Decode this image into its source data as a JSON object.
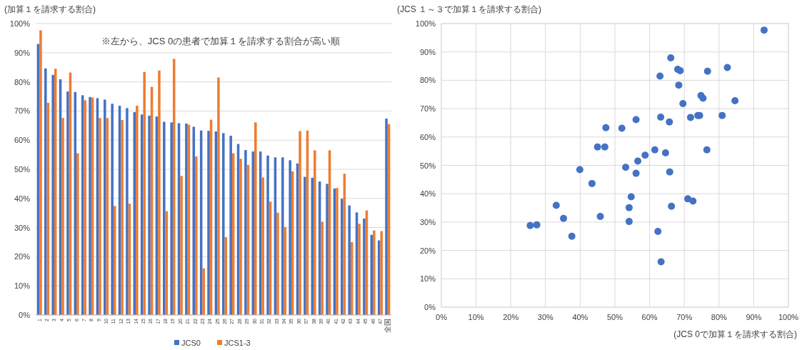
{
  "chart_data": [
    {
      "type": "bar",
      "ylabel": "(加算１を請求する割合)",
      "annotations": [
        "※左から、JCS 0の患者で加算１を請求する割合が高い順"
      ],
      "categories": [
        "1",
        "2",
        "3",
        "4",
        "5",
        "6",
        "7",
        "8",
        "9",
        "10",
        "11",
        "12",
        "13",
        "14",
        "15",
        "16",
        "17",
        "18",
        "19",
        "20",
        "21",
        "22",
        "23",
        "24",
        "25",
        "26",
        "27",
        "28",
        "29",
        "30",
        "31",
        "32",
        "33",
        "34",
        "35",
        "36",
        "37",
        "38",
        "39",
        "40",
        "41",
        "42",
        "43",
        "44",
        "45",
        "46",
        "47",
        "全国"
      ],
      "series": [
        {
          "name": "JCS0",
          "color": "#4472c4",
          "values": [
            93.0,
            84.6,
            82.4,
            80.9,
            76.7,
            76.5,
            75.4,
            74.8,
            74.4,
            73.9,
            72.5,
            71.8,
            71.0,
            69.6,
            68.8,
            68.4,
            68.1,
            66.3,
            66.1,
            65.8,
            65.7,
            64.6,
            63.3,
            63.2,
            63.0,
            62.4,
            61.5,
            58.7,
            56.6,
            56.1,
            56.1,
            54.7,
            54.1,
            54.1,
            53.1,
            52.0,
            47.4,
            47.1,
            45.8,
            45.0,
            43.4,
            39.9,
            37.6,
            35.2,
            33.1,
            27.5,
            25.6,
            67.4
          ]
        },
        {
          "name": "JCS1-3",
          "color": "#ed7d31",
          "values": [
            97.7,
            72.8,
            84.5,
            67.6,
            83.2,
            55.5,
            73.7,
            74.6,
            67.6,
            67.6,
            37.4,
            66.9,
            38.2,
            71.8,
            83.4,
            78.3,
            83.9,
            35.6,
            87.9,
            47.7,
            65.3,
            54.4,
            16.0,
            67.0,
            81.5,
            26.7,
            55.5,
            53.6,
            51.5,
            66.1,
            47.2,
            38.9,
            35.1,
            30.2,
            49.3,
            63.1,
            63.3,
            56.5,
            32.0,
            56.5,
            43.6,
            48.5,
            25.0,
            31.3,
            35.9,
            29.0,
            28.8,
            65.5
          ]
        }
      ],
      "ylim": [
        0,
        100
      ],
      "yticks": [
        {
          "value": 0,
          "label": "0%"
        },
        {
          "value": 10,
          "label": "10%"
        },
        {
          "value": 20,
          "label": "20%"
        },
        {
          "value": 30,
          "label": "30%"
        },
        {
          "value": 40,
          "label": "40%"
        },
        {
          "value": 50,
          "label": "50%"
        },
        {
          "value": 60,
          "label": "60%"
        },
        {
          "value": 70,
          "label": "70%"
        },
        {
          "value": 80,
          "label": "80%"
        },
        {
          "value": 90,
          "label": "90%"
        },
        {
          "value": 100,
          "label": "100%"
        }
      ],
      "grid": "y",
      "legend": "bottom"
    },
    {
      "type": "scatter",
      "xlabel": "(JCS 0で加算１を請求する割合)",
      "ylabel": "(JCS １～３で加算１を請求する割合)",
      "x": [
        93.0,
        84.6,
        82.4,
        80.9,
        76.7,
        76.5,
        75.4,
        74.8,
        74.4,
        73.9,
        72.5,
        71.8,
        71.0,
        69.6,
        68.8,
        68.4,
        68.1,
        66.3,
        66.1,
        65.8,
        65.7,
        64.6,
        63.3,
        63.2,
        63.0,
        62.4,
        61.5,
        58.7,
        56.6,
        56.1,
        56.1,
        54.7,
        54.1,
        54.1,
        53.1,
        52.0,
        47.4,
        47.1,
        45.8,
        45.0,
        43.4,
        39.9,
        37.6,
        35.2,
        33.1,
        27.5,
        25.6
      ],
      "series": [
        {
          "color": "#4472c4",
          "values": [
            97.7,
            72.8,
            84.5,
            67.6,
            83.2,
            55.5,
            73.7,
            74.6,
            67.6,
            67.6,
            37.4,
            66.9,
            38.2,
            71.8,
            83.4,
            78.3,
            83.9,
            35.6,
            87.9,
            47.7,
            65.3,
            54.4,
            16.0,
            67.0,
            81.5,
            26.7,
            55.5,
            53.6,
            51.5,
            66.1,
            47.2,
            38.9,
            35.1,
            30.2,
            49.3,
            63.1,
            63.3,
            56.5,
            32.0,
            56.5,
            43.6,
            48.5,
            25.0,
            31.3,
            35.9,
            29.0,
            28.8
          ]
        }
      ],
      "xlim": [
        0,
        100
      ],
      "ylim": [
        0,
        100
      ],
      "xticks": [
        {
          "value": 0,
          "label": "0%"
        },
        {
          "value": 10,
          "label": "10%"
        },
        {
          "value": 20,
          "label": "20%"
        },
        {
          "value": 30,
          "label": "30%"
        },
        {
          "value": 40,
          "label": "40%"
        },
        {
          "value": 50,
          "label": "50%"
        },
        {
          "value": 60,
          "label": "60%"
        },
        {
          "value": 70,
          "label": "70%"
        },
        {
          "value": 80,
          "label": "80%"
        },
        {
          "value": 90,
          "label": "90%"
        },
        {
          "value": 100,
          "label": "100%"
        }
      ],
      "yticks": [
        {
          "value": 0,
          "label": "0%"
        },
        {
          "value": 10,
          "label": "10%"
        },
        {
          "value": 20,
          "label": "20%"
        },
        {
          "value": 30,
          "label": "30%"
        },
        {
          "value": 40,
          "label": "40%"
        },
        {
          "value": 50,
          "label": "50%"
        },
        {
          "value": 60,
          "label": "60%"
        },
        {
          "value": 70,
          "label": "70%"
        },
        {
          "value": 80,
          "label": "80%"
        },
        {
          "value": 90,
          "label": "90%"
        },
        {
          "value": 100,
          "label": "100%"
        }
      ],
      "grid": true,
      "marker": "circle"
    }
  ]
}
